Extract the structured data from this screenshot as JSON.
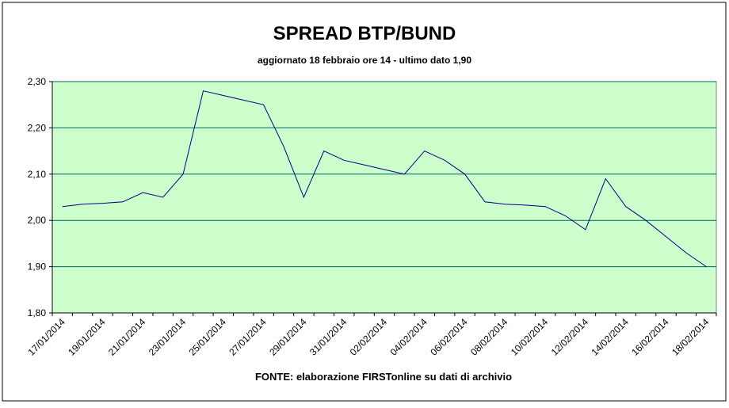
{
  "chart_data": {
    "type": "line",
    "title": "SPREAD BTP/BUND",
    "subtitle": "aggiornato 18 febbraio ore 14 - ultimo dato 1,90",
    "source": "FONTE:  elaborazione FIRSTonline su dati di archivio",
    "categories": [
      "17/01/2014",
      null,
      "19/01/2014",
      null,
      "21/01/2014",
      null,
      "23/01/2014",
      null,
      "25/01/2014",
      null,
      "27/01/2014",
      null,
      "29/01/2014",
      null,
      "31/01/2014",
      null,
      "02/02/2014",
      null,
      "04/02/2014",
      null,
      "06/02/2014",
      null,
      "08/02/2014",
      null,
      "10/02/2014",
      null,
      "12/02/2014",
      null,
      "14/02/2014",
      null,
      "16/02/2014",
      null,
      "18/02/2014"
    ],
    "values": [
      2.03,
      2.035,
      2.037,
      2.04,
      2.06,
      2.05,
      2.1,
      2.28,
      2.27,
      2.26,
      2.25,
      2.16,
      2.05,
      2.15,
      2.13,
      2.12,
      2.11,
      2.1,
      2.15,
      2.13,
      2.1,
      2.04,
      2.035,
      2.033,
      2.03,
      2.01,
      1.98,
      2.09,
      2.03,
      2.0,
      1.965,
      1.93,
      1.9
    ],
    "color": "#000080",
    "background": "#ccffcc",
    "ylim": [
      1.8,
      2.3
    ],
    "yticks": [
      {
        "value": 1.8,
        "label": "1,80"
      },
      {
        "value": 1.9,
        "label": "1,90"
      },
      {
        "value": 2.0,
        "label": "2,00"
      },
      {
        "value": 2.1,
        "label": "2,10"
      },
      {
        "value": 2.2,
        "label": "2,20"
      },
      {
        "value": 2.3,
        "label": "2,30"
      }
    ],
    "grid": true
  }
}
